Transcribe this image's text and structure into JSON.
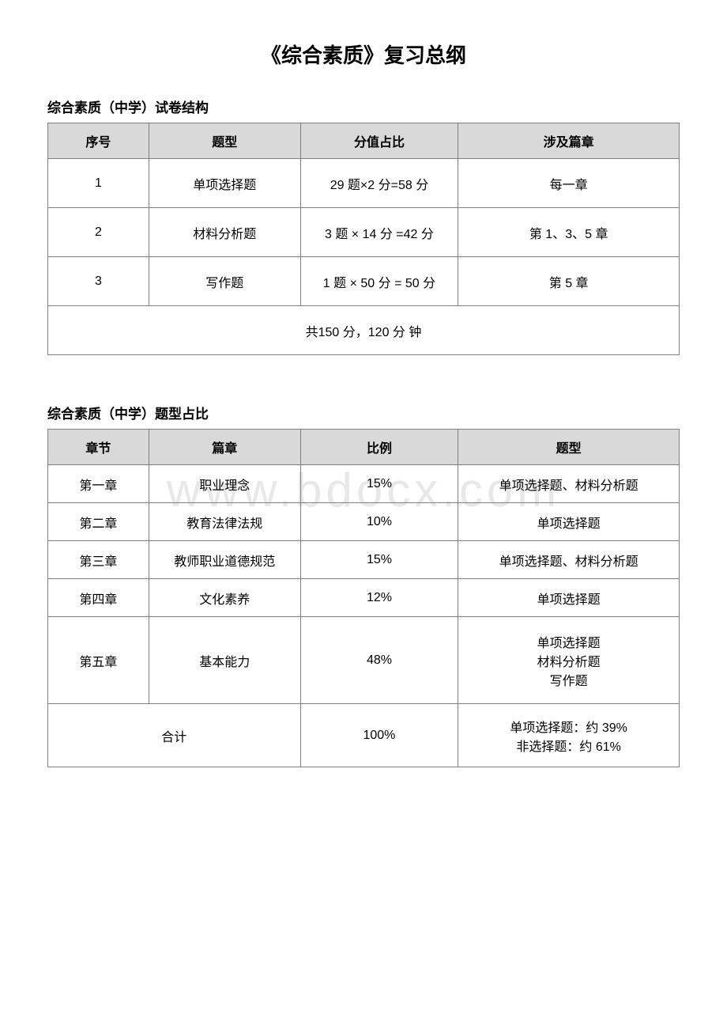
{
  "watermark": "www.bdocx.com",
  "page_title": "《综合素质》复习总纲",
  "section1": {
    "title": "综合素质（中学）试卷结构",
    "headers": {
      "col1": "序号",
      "col2": "题型",
      "col3": "分值占比",
      "col4": "涉及篇章"
    },
    "rows": [
      {
        "c1": "1",
        "c2": "单项选择题",
        "c3": "29 题×2 分=58 分",
        "c4": "每一章"
      },
      {
        "c1": "2",
        "c2": "材料分析题",
        "c3": "3 题 × 14 分 =42 分",
        "c4": "第 1、3、5 章"
      },
      {
        "c1": "3",
        "c2": "写作题",
        "c3": "1 题 × 50 分 = 50 分",
        "c4": "第 5 章"
      }
    ],
    "total": "共150 分，120 分 钟"
  },
  "section2": {
    "title": "综合素质（中学）题型占比",
    "headers": {
      "col1": "章节",
      "col2": "篇章",
      "col3": "比例",
      "col4": "题型"
    },
    "rows": [
      {
        "c1": "第一章",
        "c2": "职业理念",
        "c3": "15%",
        "c4": "单项选择题、材料分析题"
      },
      {
        "c1": "第二章",
        "c2": "教育法律法规",
        "c3": "10%",
        "c4": "单项选择题"
      },
      {
        "c1": "第三章",
        "c2": "教师职业道德规范",
        "c3": "15%",
        "c4": "单项选择题、材料分析题"
      },
      {
        "c1": "第四章",
        "c2": "文化素养",
        "c3": "12%",
        "c4": "单项选择题"
      }
    ],
    "row5": {
      "c1": "第五章",
      "c2": "基本能力",
      "c3": "48%",
      "c4_line1": "单项选择题",
      "c4_line2": "材料分析题",
      "c4_line3": "写作题"
    },
    "row_total": {
      "c1": "合计",
      "c3": "100%",
      "c4_line1": "单项选择题：约 39%",
      "c4_line2": "非选择题：约 61%"
    }
  },
  "colors": {
    "header_bg": "#d9d9d9",
    "border": "#808080",
    "watermark": "#e8e8e8",
    "text": "#000000"
  }
}
